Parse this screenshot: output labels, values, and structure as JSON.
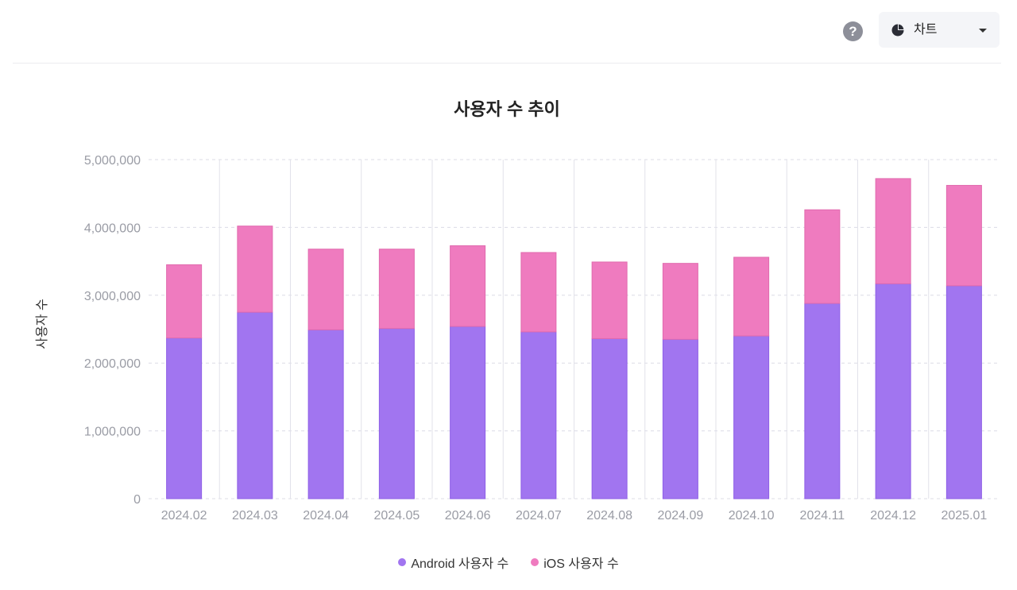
{
  "toolbar": {
    "help_icon": "question-circle-icon",
    "view_select": {
      "icon": "pie-chart-icon",
      "label": "차트"
    }
  },
  "chart_data": {
    "type": "bar",
    "stacked": true,
    "title": "사용자 수 추이",
    "xlabel": "",
    "ylabel": "사용자 수",
    "ylim": [
      0,
      5000000
    ],
    "yticks": [
      "0",
      "1,000,000",
      "2,000,000",
      "3,000,000",
      "4,000,000",
      "5,000,000"
    ],
    "grid": true,
    "legend_position": "bottom-center",
    "categories": [
      "2024.02",
      "2024.03",
      "2024.04",
      "2024.05",
      "2024.06",
      "2024.07",
      "2024.08",
      "2024.09",
      "2024.10",
      "2024.11",
      "2024.12",
      "2025.01"
    ],
    "series": [
      {
        "name": "Android 사용자 수",
        "color": "#a175f0",
        "values": [
          2370000,
          2750000,
          2490000,
          2510000,
          2540000,
          2460000,
          2360000,
          2350000,
          2400000,
          2880000,
          3170000,
          3140000
        ]
      },
      {
        "name": "iOS 사용자 수",
        "color": "#ef7bbf",
        "values": [
          1080000,
          1270000,
          1190000,
          1170000,
          1190000,
          1170000,
          1130000,
          1120000,
          1160000,
          1380000,
          1550000,
          1480000
        ]
      }
    ]
  }
}
